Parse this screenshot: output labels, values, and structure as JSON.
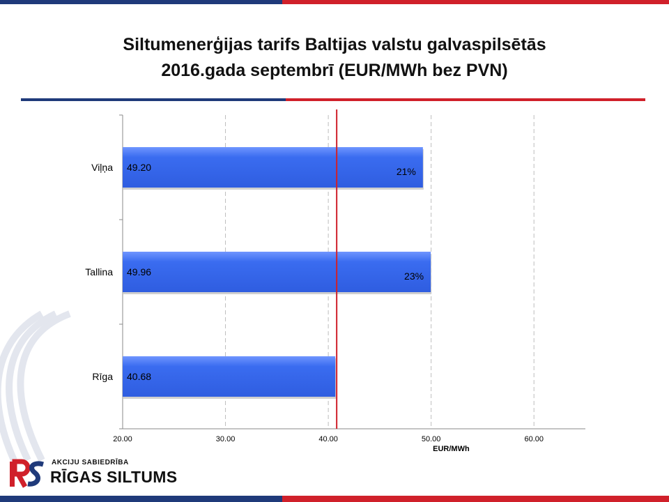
{
  "title_line1": "Siltumenerģijas tarifs Baltijas valstu galvaspilsētās",
  "title_line2": "2016.gada septembrī (EUR/MWh bez PVN)",
  "colors": {
    "bar": "#3a6cf0",
    "reference_line": "#d0202a",
    "brand_blue": "#1f3a7a",
    "brand_red": "#d0202a"
  },
  "logo": {
    "small_text": "AKCIJU SABIEDRĪBA",
    "big_text": "RĪGAS SILTUMS"
  },
  "chart_data": {
    "type": "bar",
    "orientation": "horizontal",
    "categories": [
      "Viļņa",
      "Tallina",
      "Rīga"
    ],
    "values": [
      49.2,
      49.96,
      40.68
    ],
    "value_labels": [
      "49.20",
      "49.96",
      "40.68"
    ],
    "percent_labels": [
      "21%",
      "23%",
      ""
    ],
    "reference_value": 40.68,
    "xlim": [
      20,
      65
    ],
    "xticks": [
      20,
      30,
      40,
      50,
      60
    ],
    "xtick_labels": [
      "20.00",
      "30.00",
      "40.00",
      "50.00",
      "60.00"
    ],
    "xlabel": "EUR/MWh",
    "grid": "vertical-dashed"
  }
}
